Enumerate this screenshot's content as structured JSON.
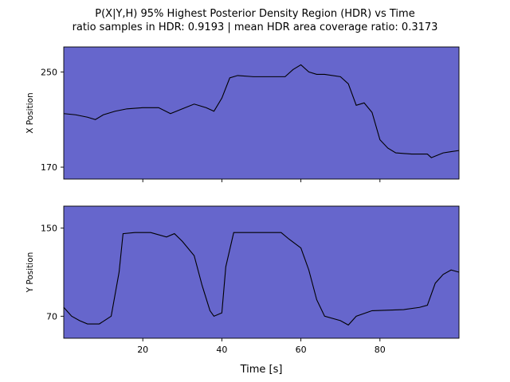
{
  "title_line1": "P(X|Y,H) 95% Highest Posterior Density Region (HDR) vs Time",
  "title_line2": "ratio samples in HDR: 0.9193 | mean HDR area coverage ratio: 0.3173",
  "colors": {
    "hdr": "#6666cc",
    "trace": "#000000",
    "axes": "#000000"
  },
  "chart_data": [
    {
      "type": "area",
      "ylabel": "X Position",
      "xlim": [
        0,
        100
      ],
      "ylim": [
        160,
        271
      ],
      "yticks": [
        170,
        250
      ],
      "xticks": [
        20,
        40,
        60,
        80
      ],
      "show_xtick_labels": false,
      "band_upper": [
        [
          0,
          271
        ],
        [
          100,
          271
        ]
      ],
      "band_lower": [
        [
          0,
          160
        ],
        [
          100,
          160
        ]
      ],
      "trace": [
        [
          0,
          215
        ],
        [
          3,
          214
        ],
        [
          6,
          212
        ],
        [
          8,
          210
        ],
        [
          10,
          214
        ],
        [
          13,
          217
        ],
        [
          16,
          219
        ],
        [
          20,
          220
        ],
        [
          24,
          220
        ],
        [
          27,
          215
        ],
        [
          30,
          219
        ],
        [
          33,
          223
        ],
        [
          36,
          220
        ],
        [
          38,
          217
        ],
        [
          40,
          228
        ],
        [
          42,
          245
        ],
        [
          44,
          247
        ],
        [
          48,
          246
        ],
        [
          56,
          246
        ],
        [
          58,
          252
        ],
        [
          60,
          256
        ],
        [
          62,
          250
        ],
        [
          64,
          248
        ],
        [
          66,
          248
        ],
        [
          70,
          246
        ],
        [
          72,
          240
        ],
        [
          74,
          222
        ],
        [
          76,
          224
        ],
        [
          78,
          216
        ],
        [
          80,
          193
        ],
        [
          82,
          186
        ],
        [
          84,
          182
        ],
        [
          88,
          181
        ],
        [
          92,
          181
        ],
        [
          93,
          178
        ],
        [
          96,
          182
        ],
        [
          98,
          183
        ],
        [
          100,
          184
        ]
      ]
    },
    {
      "type": "area",
      "ylabel": "Y Position",
      "xlabel": "Time [s]",
      "xlim": [
        0,
        100
      ],
      "ylim": [
        50,
        170
      ],
      "yticks": [
        70,
        150
      ],
      "xticks": [
        20,
        40,
        60,
        80
      ],
      "xtick_labels": [
        "20",
        "40",
        "60",
        "80"
      ],
      "band_upper": [
        [
          0,
          170
        ],
        [
          100,
          170
        ]
      ],
      "band_lower": [
        [
          0,
          50
        ],
        [
          100,
          50
        ]
      ],
      "trace": [
        [
          0,
          78
        ],
        [
          2,
          70
        ],
        [
          4,
          66
        ],
        [
          6,
          63
        ],
        [
          9,
          63
        ],
        [
          12,
          70
        ],
        [
          14,
          110
        ],
        [
          15,
          145
        ],
        [
          18,
          146
        ],
        [
          22,
          146
        ],
        [
          26,
          142
        ],
        [
          28,
          145
        ],
        [
          30,
          138
        ],
        [
          33,
          125
        ],
        [
          35,
          98
        ],
        [
          37,
          75
        ],
        [
          38,
          70
        ],
        [
          40,
          73
        ],
        [
          41,
          115
        ],
        [
          43,
          146
        ],
        [
          48,
          146
        ],
        [
          55,
          146
        ],
        [
          57,
          140
        ],
        [
          60,
          132
        ],
        [
          62,
          112
        ],
        [
          64,
          85
        ],
        [
          66,
          70
        ],
        [
          70,
          66
        ],
        [
          72,
          62
        ],
        [
          74,
          70
        ],
        [
          78,
          75
        ],
        [
          86,
          76
        ],
        [
          90,
          78
        ],
        [
          92,
          80
        ],
        [
          94,
          100
        ],
        [
          96,
          108
        ],
        [
          98,
          112
        ],
        [
          100,
          110
        ]
      ]
    }
  ]
}
